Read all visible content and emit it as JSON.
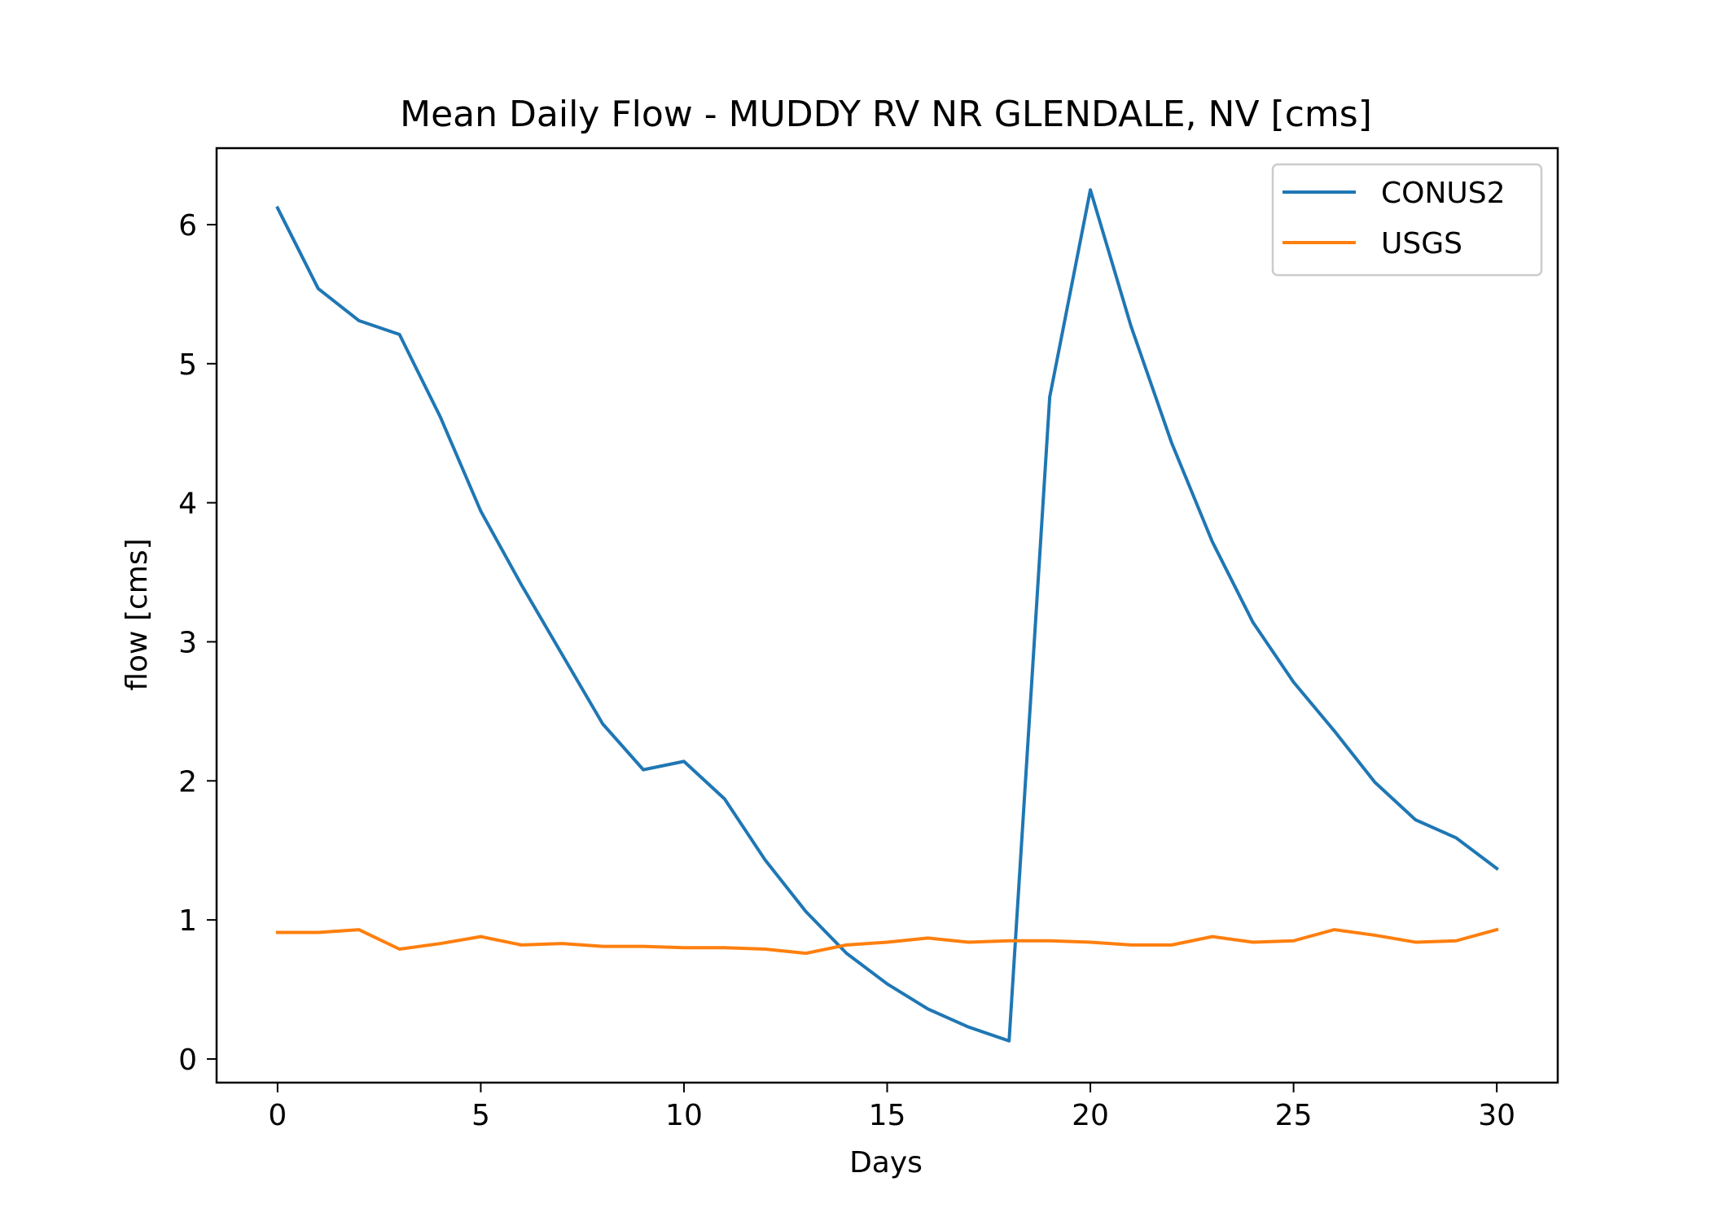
{
  "chart_data": {
    "type": "line",
    "title": "Mean Daily Flow - MUDDY RV NR GLENDALE, NV [cms]",
    "xlabel": "Days",
    "ylabel": "flow [cms]",
    "xlim": [
      -1.5,
      31.5
    ],
    "ylim": [
      -0.17,
      6.55
    ],
    "xticks": [
      0,
      5,
      10,
      15,
      20,
      25,
      30
    ],
    "xtick_labels": [
      "0",
      "5",
      "10",
      "15",
      "20",
      "25",
      "30"
    ],
    "yticks": [
      0,
      1,
      2,
      3,
      4,
      5,
      6
    ],
    "ytick_labels": [
      "0",
      "1",
      "2",
      "3",
      "4",
      "5",
      "6"
    ],
    "grid": false,
    "legend_position": "top-right",
    "x": [
      0,
      1,
      2,
      3,
      4,
      5,
      6,
      7,
      8,
      9,
      10,
      11,
      12,
      13,
      14,
      15,
      16,
      17,
      18,
      19,
      20,
      21,
      22,
      23,
      24,
      25,
      26,
      27,
      28,
      29,
      30
    ],
    "series": [
      {
        "name": "CONUS2",
        "color": "#1f77b4",
        "values": [
          6.12,
          5.54,
          5.31,
          5.21,
          4.62,
          3.94,
          3.41,
          2.91,
          2.41,
          2.08,
          2.14,
          1.87,
          1.43,
          1.06,
          0.76,
          0.54,
          0.36,
          0.23,
          0.13,
          4.76,
          6.25,
          5.27,
          4.43,
          3.72,
          3.14,
          2.71,
          2.36,
          1.99,
          1.72,
          1.59,
          1.37
        ]
      },
      {
        "name": "USGS",
        "color": "#ff7f0e",
        "values": [
          0.91,
          0.91,
          0.93,
          0.79,
          0.83,
          0.88,
          0.82,
          0.83,
          0.81,
          0.81,
          0.8,
          0.8,
          0.79,
          0.76,
          0.82,
          0.84,
          0.87,
          0.84,
          0.85,
          0.85,
          0.84,
          0.82,
          0.82,
          0.88,
          0.84,
          0.85,
          0.93,
          0.89,
          0.84,
          0.85,
          0.93
        ]
      }
    ]
  }
}
